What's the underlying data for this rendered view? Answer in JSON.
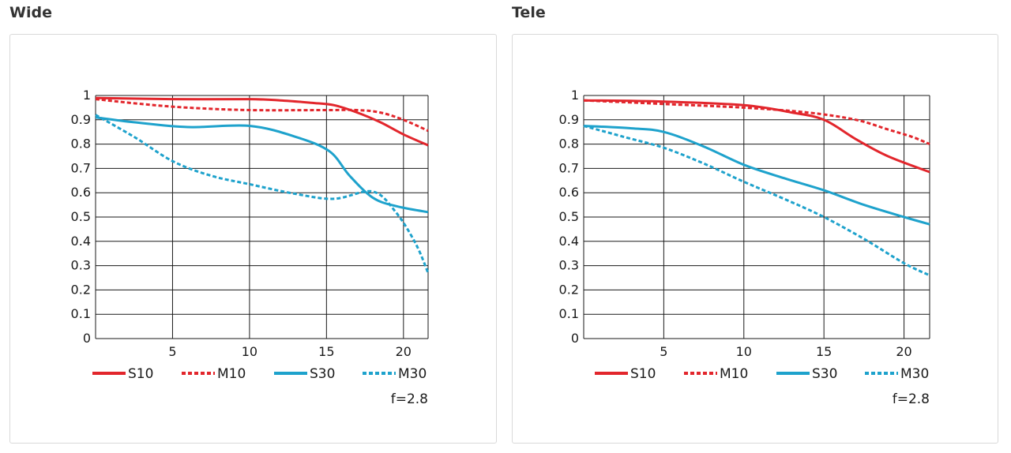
{
  "colors": {
    "red": "#e2262c",
    "blue": "#1ea2cc",
    "grid": "#1a1a1a",
    "border": "#d9d9d9"
  },
  "chart_data": [
    {
      "type": "line",
      "title": "Wide",
      "note": "f=2.8",
      "xlim": [
        0,
        21.6
      ],
      "ylim": [
        0,
        1
      ],
      "xticks": [
        5,
        10,
        15,
        20
      ],
      "yticks": [
        0,
        0.1,
        0.2,
        0.3,
        0.4,
        0.5,
        0.6,
        0.7,
        0.8,
        0.9,
        1
      ],
      "ytick_labels": [
        "0",
        "0.1",
        "0.2",
        "0.3",
        "0.4",
        "0.5",
        "0.6",
        "0.7",
        "0.8",
        "0.9",
        "1"
      ],
      "grid": true,
      "legend_position": "bottom",
      "series": [
        {
          "name": "S10",
          "color": "#e2262c",
          "dashed": false,
          "x": [
            0,
            5,
            10,
            12,
            14,
            15.5,
            17,
            18.5,
            20,
            21.6
          ],
          "y": [
            0.99,
            0.985,
            0.985,
            0.98,
            0.97,
            0.96,
            0.93,
            0.89,
            0.84,
            0.795
          ]
        },
        {
          "name": "M10",
          "color": "#e2262c",
          "dashed": true,
          "x": [
            0,
            3,
            6,
            10,
            15,
            17,
            18.5,
            20,
            21.6
          ],
          "y": [
            0.985,
            0.965,
            0.95,
            0.94,
            0.94,
            0.94,
            0.93,
            0.9,
            0.855
          ]
        },
        {
          "name": "S30",
          "color": "#1ea2cc",
          "dashed": false,
          "x": [
            0,
            2.5,
            6,
            10,
            13,
            15.2,
            16.5,
            18,
            19.5,
            21.6
          ],
          "y": [
            0.91,
            0.89,
            0.87,
            0.875,
            0.83,
            0.77,
            0.67,
            0.58,
            0.545,
            0.52
          ]
        },
        {
          "name": "M30",
          "color": "#1ea2cc",
          "dashed": true,
          "x": [
            0,
            2.5,
            5,
            7.5,
            10,
            13,
            15.5,
            18,
            19.5,
            20.8,
            21.6
          ],
          "y": [
            0.92,
            0.83,
            0.73,
            0.67,
            0.635,
            0.595,
            0.575,
            0.605,
            0.52,
            0.39,
            0.27
          ]
        }
      ]
    },
    {
      "type": "line",
      "title": "Tele",
      "note": "f=2.8",
      "xlim": [
        0,
        21.6
      ],
      "ylim": [
        0,
        1
      ],
      "xticks": [
        5,
        10,
        15,
        20
      ],
      "yticks": [
        0,
        0.1,
        0.2,
        0.3,
        0.4,
        0.5,
        0.6,
        0.7,
        0.8,
        0.9,
        1
      ],
      "ytick_labels": [
        "0",
        "0.1",
        "0.2",
        "0.3",
        "0.4",
        "0.5",
        "0.6",
        "0.7",
        "0.8",
        "0.9",
        "1"
      ],
      "grid": true,
      "legend_position": "bottom",
      "series": [
        {
          "name": "S10",
          "color": "#e2262c",
          "dashed": false,
          "x": [
            0,
            5,
            10,
            13,
            15,
            17,
            19,
            21.6
          ],
          "y": [
            0.98,
            0.975,
            0.96,
            0.93,
            0.9,
            0.82,
            0.75,
            0.685
          ]
        },
        {
          "name": "M10",
          "color": "#e2262c",
          "dashed": true,
          "x": [
            0,
            5,
            10,
            14,
            17,
            19,
            20.5,
            21.6
          ],
          "y": [
            0.98,
            0.965,
            0.95,
            0.93,
            0.9,
            0.86,
            0.83,
            0.8
          ]
        },
        {
          "name": "S30",
          "color": "#1ea2cc",
          "dashed": false,
          "x": [
            0,
            3,
            5,
            7.5,
            10,
            12.5,
            15,
            17.5,
            20,
            21.6
          ],
          "y": [
            0.875,
            0.865,
            0.85,
            0.79,
            0.715,
            0.66,
            0.61,
            0.55,
            0.5,
            0.47
          ]
        },
        {
          "name": "M30",
          "color": "#1ea2cc",
          "dashed": true,
          "x": [
            0,
            2.5,
            5,
            7.5,
            10,
            12.5,
            15,
            17.5,
            20,
            21.6
          ],
          "y": [
            0.875,
            0.83,
            0.785,
            0.72,
            0.645,
            0.575,
            0.5,
            0.41,
            0.31,
            0.26
          ]
        }
      ]
    }
  ]
}
